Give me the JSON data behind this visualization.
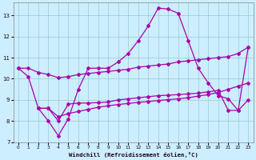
{
  "xlabel": "Windchill (Refroidissement éolien,°C)",
  "bg_color": "#cceeff",
  "line_color": "#aa00aa",
  "grid_color": "#99cccc",
  "xlim": [
    -0.5,
    23.5
  ],
  "ylim": [
    7,
    13.6
  ],
  "yticks": [
    7,
    8,
    9,
    10,
    11,
    12,
    13
  ],
  "xticks": [
    0,
    1,
    2,
    3,
    4,
    5,
    6,
    7,
    8,
    9,
    10,
    11,
    12,
    13,
    14,
    15,
    16,
    17,
    18,
    19,
    20,
    21,
    22,
    23
  ],
  "lines": [
    {
      "x": [
        0,
        1,
        2,
        3,
        4,
        5,
        6,
        7,
        8,
        9,
        10,
        11,
        12,
        13,
        14,
        15,
        16,
        17,
        18,
        19,
        20,
        21,
        22,
        23
      ],
      "y": [
        10.5,
        10.1,
        8.6,
        8.0,
        7.3,
        8.1,
        9.5,
        10.5,
        10.5,
        10.5,
        10.8,
        11.2,
        11.8,
        12.5,
        13.35,
        13.3,
        13.1,
        11.8,
        10.5,
        9.8,
        9.2,
        9.05,
        8.5,
        11.5
      ]
    },
    {
      "x": [
        0,
        1,
        2,
        3,
        4,
        5,
        6,
        7,
        8,
        9,
        10,
        11,
        12,
        13,
        14,
        15,
        16,
        17,
        18,
        19,
        20,
        21,
        22,
        23
      ],
      "y": [
        10.5,
        10.5,
        10.3,
        10.2,
        10.05,
        10.1,
        10.2,
        10.25,
        10.3,
        10.35,
        10.4,
        10.45,
        10.55,
        10.6,
        10.65,
        10.7,
        10.8,
        10.85,
        10.9,
        10.95,
        11.0,
        11.05,
        11.2,
        11.5
      ]
    },
    {
      "x": [
        2,
        3,
        4,
        5,
        6,
        7,
        8,
        9,
        10,
        11,
        12,
        13,
        14,
        15,
        16,
        17,
        18,
        19,
        20,
        21,
        22,
        23
      ],
      "y": [
        8.6,
        8.6,
        8.2,
        8.35,
        8.45,
        8.55,
        8.65,
        8.72,
        8.78,
        8.83,
        8.88,
        8.92,
        8.97,
        9.01,
        9.05,
        9.1,
        9.18,
        9.25,
        9.35,
        9.5,
        9.65,
        9.8
      ]
    },
    {
      "x": [
        2,
        3,
        4,
        5,
        6,
        7,
        8,
        9,
        10,
        11,
        12,
        13,
        14,
        15,
        16,
        17,
        18,
        19,
        20,
        21,
        22,
        23
      ],
      "y": [
        8.6,
        8.6,
        8.0,
        8.8,
        8.85,
        8.85,
        8.87,
        8.9,
        9.0,
        9.05,
        9.1,
        9.15,
        9.2,
        9.22,
        9.25,
        9.28,
        9.32,
        9.38,
        9.45,
        8.5,
        8.5,
        9.0
      ]
    }
  ]
}
